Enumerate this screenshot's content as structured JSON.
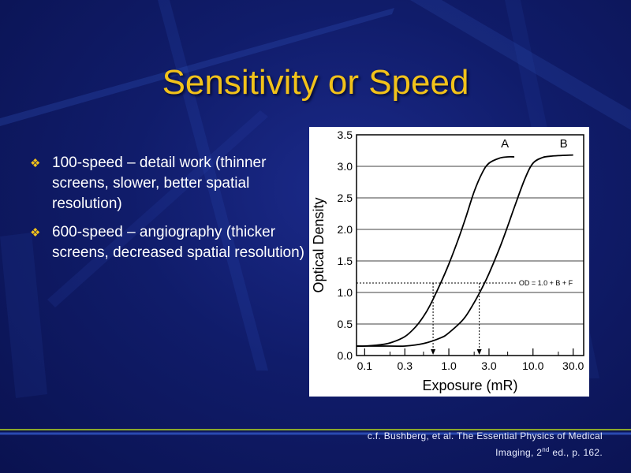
{
  "slide": {
    "title": "Sensitivity or Speed",
    "bullets": [
      {
        "text": "100-speed – detail work (thinner screens, slower, better spatial resolution)"
      },
      {
        "text": "600-speed – angiography (thicker screens, decreased spatial resolution)"
      }
    ],
    "citation": {
      "line1": "c.f. Bushberg, et al. The Essential Physics of Medical",
      "line2_pre": "Imaging, 2",
      "line2_sup": "nd",
      "line2_post": " ed., p. 162."
    },
    "colors": {
      "title": "#f2c21a",
      "text": "#ffffff",
      "background": "#101c6a"
    }
  },
  "chart_data": {
    "type": "line",
    "xlabel": "Exposure (mR)",
    "ylabel": "Optical Density",
    "x_scale": "log",
    "xlim": [
      0.08,
      40
    ],
    "ylim": [
      0,
      3.5
    ],
    "x_ticks": [
      {
        "value": 0.1,
        "label": "0.1"
      },
      {
        "value": 0.3,
        "label": "0.3"
      },
      {
        "value": 1.0,
        "label": "1.0"
      },
      {
        "value": 3.0,
        "label": "3.0"
      },
      {
        "value": 10.0,
        "label": "10.0"
      },
      {
        "value": 30.0,
        "label": "30.0"
      }
    ],
    "x_minor_ticks": [
      0.2,
      0.5,
      2,
      5,
      20
    ],
    "y_ticks": [
      {
        "value": 0.0,
        "label": "0.0"
      },
      {
        "value": 0.5,
        "label": "0.5"
      },
      {
        "value": 1.0,
        "label": "1.0"
      },
      {
        "value": 1.5,
        "label": "1.5"
      },
      {
        "value": 2.0,
        "label": "2.0"
      },
      {
        "value": 2.5,
        "label": "2.5"
      },
      {
        "value": 3.0,
        "label": "3.0"
      },
      {
        "value": 3.5,
        "label": "3.5"
      }
    ],
    "grid": "horizontal",
    "series": [
      {
        "name": "A",
        "x": [
          0.08,
          0.1,
          0.15,
          0.2,
          0.3,
          0.4,
          0.5,
          0.6,
          0.8,
          1.0,
          1.3,
          1.6,
          2.0,
          2.5,
          3.0,
          4.0,
          5.0,
          6.0
        ],
        "y": [
          0.15,
          0.15,
          0.17,
          0.2,
          0.3,
          0.45,
          0.62,
          0.8,
          1.15,
          1.45,
          1.85,
          2.2,
          2.6,
          2.9,
          3.05,
          3.13,
          3.15,
          3.15
        ]
      },
      {
        "name": "B",
        "x": [
          0.08,
          0.2,
          0.3,
          0.5,
          0.8,
          1.0,
          1.5,
          2.0,
          2.5,
          3.0,
          4.0,
          5.0,
          6.0,
          8.0,
          10.0,
          13.0,
          16.0,
          20.0,
          30.0
        ],
        "y": [
          0.15,
          0.15,
          0.15,
          0.19,
          0.28,
          0.36,
          0.58,
          0.84,
          1.08,
          1.3,
          1.7,
          2.05,
          2.35,
          2.8,
          3.05,
          3.14,
          3.16,
          3.17,
          3.18
        ]
      }
    ],
    "annotation": {
      "label": "OD = 1.0 + B + F",
      "y": 1.15,
      "x_markers": [
        0.65,
        2.3
      ]
    }
  }
}
